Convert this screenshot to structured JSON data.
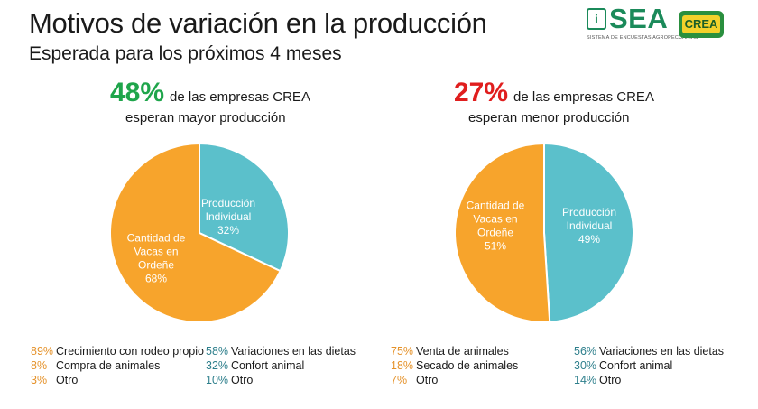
{
  "header": {
    "title": "Motivos de variación en la producción",
    "subtitle": "Esperada para los próximos 4 meses"
  },
  "logos": {
    "sea_text": "SEA",
    "sea_subtitle": "SISTEMA DE ENCUESTAS AGROPECUARIAS",
    "crea_text": "CREA"
  },
  "left": {
    "big_pct": "48%",
    "line1": "de las empresas CREA",
    "line2": "esperan mayor producción",
    "accent": "#1fa54b"
  },
  "right": {
    "big_pct": "27%",
    "line1": "de las empresas CREA",
    "line2": "esperan menor producción",
    "accent": "#e01e1e"
  },
  "colors": {
    "orange": "#f7a42c",
    "teal": "#5bc0cb"
  },
  "chart_data": [
    {
      "type": "pie",
      "title": "48% de las empresas CREA esperan mayor producción",
      "slices": [
        {
          "label": [
            "Producción",
            "Individual"
          ],
          "value": 32,
          "value_label": "32%",
          "color": "#5bc0cb"
        },
        {
          "label": [
            "Cantidad de",
            "Vacas en",
            "Ordeñe"
          ],
          "value": 68,
          "value_label": "68%",
          "color": "#f7a42c"
        }
      ]
    },
    {
      "type": "pie",
      "title": "27% de las empresas CREA esperan menor producción",
      "slices": [
        {
          "label": [
            "Producción",
            "Individual"
          ],
          "value": 49,
          "value_label": "49%",
          "color": "#5bc0cb"
        },
        {
          "label": [
            "Cantidad de",
            "Vacas en",
            "Ordeñe"
          ],
          "value": 51,
          "value_label": "51%",
          "color": "#f7a42c"
        }
      ]
    }
  ],
  "legends": {
    "left_orange": [
      {
        "pct": "89%",
        "text": "Crecimiento con rodeo propio"
      },
      {
        "pct": "8%",
        "text": "Compra de animales"
      },
      {
        "pct": "3%",
        "text": "Otro"
      }
    ],
    "left_teal": [
      {
        "pct": "58%",
        "text": "Variaciones en las dietas"
      },
      {
        "pct": "32%",
        "text": "Confort animal"
      },
      {
        "pct": "10%",
        "text": "Otro"
      }
    ],
    "right_orange": [
      {
        "pct": "75%",
        "text": "Venta de animales"
      },
      {
        "pct": "18%",
        "text": "Secado de animales"
      },
      {
        "pct": "7%",
        "text": "Otro"
      }
    ],
    "right_teal": [
      {
        "pct": "56%",
        "text": "Variaciones en las dietas"
      },
      {
        "pct": "30%",
        "text": "Confort animal"
      },
      {
        "pct": "14%",
        "text": "Otro"
      }
    ]
  }
}
